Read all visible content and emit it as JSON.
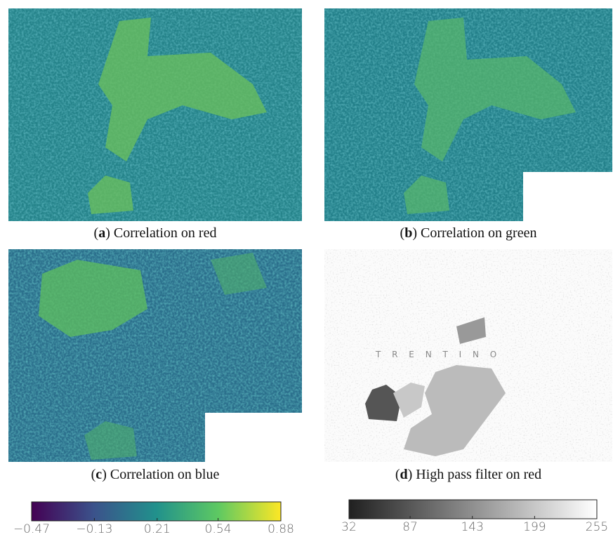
{
  "panels": [
    {
      "open": "(",
      "label": "a",
      "text": ") Correlation on red"
    },
    {
      "open": "(",
      "label": "b",
      "text": ") Correlation on green"
    },
    {
      "open": "(",
      "label": "c",
      "text": ") Correlation on blue"
    },
    {
      "open": "(",
      "label": "d",
      "text": ") High pass filter on red",
      "map_label": "T R E N T I N O"
    }
  ],
  "chart_data": [
    {
      "type": "colorbar",
      "colors": [
        "#440154",
        "#3b528b",
        "#21918c",
        "#5ec962",
        "#fde725"
      ],
      "xlim": [
        -0.47,
        0.88
      ],
      "xticks": [
        {
          "value": -0.47,
          "label": "−0.47"
        },
        {
          "value": -0.13,
          "label": "−0.13"
        },
        0.21,
        0.54,
        0.88
      ]
    },
    {
      "type": "colorbar",
      "colors": [
        "#202020",
        "#ffffff"
      ],
      "xlim": [
        32,
        255
      ],
      "xticks": [
        32,
        87,
        143,
        199,
        255
      ]
    }
  ]
}
